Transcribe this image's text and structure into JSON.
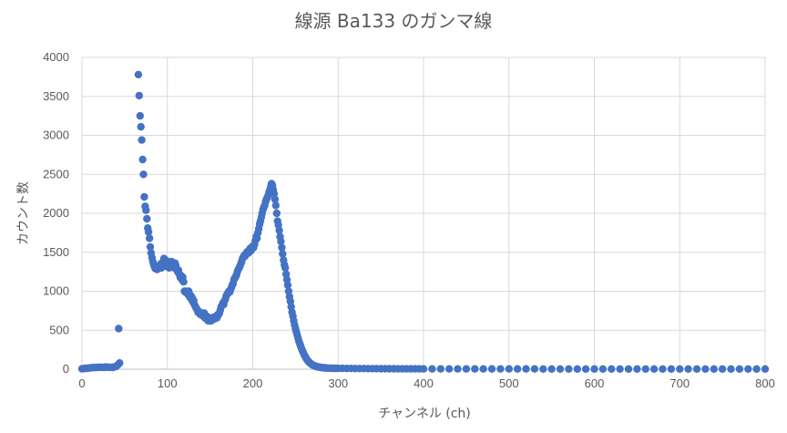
{
  "chart_data": {
    "type": "scatter",
    "title": "線源 Ba133 のガンマ線",
    "xlabel": "チャンネル (ch)",
    "ylabel": "カウント数",
    "xlim": [
      0,
      800
    ],
    "ylim": [
      0,
      4000
    ],
    "xticks": [
      "0",
      "100",
      "200",
      "300",
      "400",
      "500",
      "600",
      "700",
      "800"
    ],
    "yticks": [
      "0",
      "500",
      "1000",
      "1500",
      "2000",
      "2500",
      "3000",
      "3500",
      "4000"
    ],
    "grid": true,
    "legend": "none",
    "marker_color": "#4472C4",
    "series": [
      {
        "points": [
          [
            0,
            5
          ],
          [
            2,
            8
          ],
          [
            4,
            12
          ],
          [
            6,
            10
          ],
          [
            8,
            15
          ],
          [
            10,
            18
          ],
          [
            12,
            20
          ],
          [
            14,
            22
          ],
          [
            16,
            20
          ],
          [
            18,
            25
          ],
          [
            20,
            24
          ],
          [
            22,
            26
          ],
          [
            24,
            25
          ],
          [
            26,
            23
          ],
          [
            28,
            28
          ],
          [
            30,
            26
          ],
          [
            32,
            24
          ],
          [
            34,
            25
          ],
          [
            36,
            22
          ],
          [
            38,
            30
          ],
          [
            40,
            35
          ],
          [
            42,
            55
          ],
          [
            43,
            520
          ],
          [
            44,
            80
          ],
          [
            66,
            3780
          ],
          [
            67,
            3510
          ],
          [
            68,
            3250
          ],
          [
            69,
            3110
          ],
          [
            70,
            2940
          ],
          [
            71,
            2690
          ],
          [
            72,
            2500
          ],
          [
            73,
            2210
          ],
          [
            74,
            2090
          ],
          [
            75,
            2040
          ],
          [
            76,
            1930
          ],
          [
            77,
            1810
          ],
          [
            78,
            1760
          ],
          [
            79,
            1680
          ],
          [
            80,
            1570
          ],
          [
            81,
            1490
          ],
          [
            82,
            1430
          ],
          [
            83,
            1380
          ],
          [
            84,
            1340
          ],
          [
            85,
            1310
          ],
          [
            86,
            1290
          ],
          [
            87,
            1300
          ],
          [
            88,
            1280
          ],
          [
            89,
            1300
          ],
          [
            90,
            1310
          ],
          [
            91,
            1330
          ],
          [
            92,
            1350
          ],
          [
            93,
            1300
          ],
          [
            94,
            1330
          ],
          [
            95,
            1380
          ],
          [
            96,
            1420
          ],
          [
            97,
            1360
          ],
          [
            98,
            1400
          ],
          [
            99,
            1320
          ],
          [
            100,
            1380
          ],
          [
            101,
            1350
          ],
          [
            102,
            1300
          ],
          [
            103,
            1370
          ],
          [
            104,
            1340
          ],
          [
            105,
            1380
          ],
          [
            106,
            1320
          ],
          [
            107,
            1350
          ],
          [
            108,
            1300
          ],
          [
            109,
            1360
          ],
          [
            110,
            1330
          ],
          [
            111,
            1280
          ],
          [
            112,
            1250
          ],
          [
            113,
            1270
          ],
          [
            114,
            1220
          ],
          [
            115,
            1180
          ],
          [
            116,
            1200
          ],
          [
            117,
            1150
          ],
          [
            118,
            1180
          ],
          [
            119,
            1120
          ],
          [
            120,
            1000
          ],
          [
            121,
            990
          ],
          [
            122,
            1000
          ],
          [
            123,
            980
          ],
          [
            124,
            960
          ],
          [
            125,
            1000
          ],
          [
            126,
            930
          ],
          [
            127,
            950
          ],
          [
            128,
            900
          ],
          [
            129,
            920
          ],
          [
            130,
            860
          ],
          [
            131,
            880
          ],
          [
            132,
            820
          ],
          [
            133,
            800
          ],
          [
            134,
            780
          ],
          [
            135,
            760
          ],
          [
            136,
            730
          ],
          [
            137,
            740
          ],
          [
            138,
            710
          ],
          [
            139,
            700
          ],
          [
            140,
            720
          ],
          [
            141,
            690
          ],
          [
            142,
            680
          ],
          [
            143,
            720
          ],
          [
            144,
            660
          ],
          [
            145,
            650
          ],
          [
            146,
            680
          ],
          [
            147,
            630
          ],
          [
            148,
            620
          ],
          [
            149,
            660
          ],
          [
            150,
            640
          ],
          [
            151,
            620
          ],
          [
            152,
            630
          ],
          [
            153,
            660
          ],
          [
            154,
            640
          ],
          [
            155,
            670
          ],
          [
            156,
            650
          ],
          [
            157,
            680
          ],
          [
            158,
            660
          ],
          [
            159,
            700
          ],
          [
            160,
            700
          ],
          [
            161,
            720
          ],
          [
            162,
            760
          ],
          [
            163,
            800
          ],
          [
            164,
            820
          ],
          [
            165,
            850
          ],
          [
            166,
            830
          ],
          [
            167,
            880
          ],
          [
            168,
            900
          ],
          [
            169,
            940
          ],
          [
            170,
            960
          ],
          [
            171,
            980
          ],
          [
            172,
            1000
          ],
          [
            173,
            990
          ],
          [
            174,
            1020
          ],
          [
            175,
            1050
          ],
          [
            176,
            1080
          ],
          [
            177,
            1100
          ],
          [
            178,
            1150
          ],
          [
            179,
            1170
          ],
          [
            180,
            1190
          ],
          [
            181,
            1210
          ],
          [
            182,
            1250
          ],
          [
            183,
            1280
          ],
          [
            184,
            1300
          ],
          [
            185,
            1320
          ],
          [
            186,
            1350
          ],
          [
            187,
            1380
          ],
          [
            188,
            1420
          ],
          [
            189,
            1440
          ],
          [
            190,
            1460
          ],
          [
            191,
            1450
          ],
          [
            192,
            1480
          ],
          [
            193,
            1500
          ],
          [
            194,
            1510
          ],
          [
            195,
            1490
          ],
          [
            196,
            1530
          ],
          [
            197,
            1550
          ],
          [
            198,
            1520
          ],
          [
            199,
            1560
          ],
          [
            200,
            1580
          ],
          [
            201,
            1560
          ],
          [
            202,
            1600
          ],
          [
            203,
            1650
          ],
          [
            204,
            1700
          ],
          [
            205,
            1680
          ],
          [
            206,
            1750
          ],
          [
            207,
            1800
          ],
          [
            208,
            1860
          ],
          [
            209,
            1900
          ],
          [
            210,
            1950
          ],
          [
            211,
            2000
          ],
          [
            212,
            2050
          ],
          [
            213,
            2080
          ],
          [
            214,
            2100
          ],
          [
            215,
            2150
          ],
          [
            216,
            2180
          ],
          [
            217,
            2200
          ],
          [
            218,
            2230
          ],
          [
            219,
            2270
          ],
          [
            220,
            2300
          ],
          [
            221,
            2340
          ],
          [
            222,
            2380
          ],
          [
            223,
            2360
          ],
          [
            224,
            2300
          ],
          [
            225,
            2250
          ],
          [
            226,
            2180
          ],
          [
            227,
            2100
          ],
          [
            228,
            2000
          ],
          [
            229,
            1900
          ],
          [
            230,
            1850
          ],
          [
            231,
            1780
          ],
          [
            232,
            1700
          ],
          [
            233,
            1640
          ],
          [
            234,
            1560
          ],
          [
            235,
            1480
          ],
          [
            236,
            1400
          ],
          [
            237,
            1340
          ],
          [
            238,
            1300
          ],
          [
            239,
            1220
          ],
          [
            240,
            1150
          ],
          [
            241,
            1080
          ],
          [
            242,
            1000
          ],
          [
            243,
            930
          ],
          [
            244,
            870
          ],
          [
            245,
            800
          ],
          [
            246,
            730
          ],
          [
            247,
            680
          ],
          [
            248,
            620
          ],
          [
            249,
            570
          ],
          [
            250,
            520
          ],
          [
            251,
            480
          ],
          [
            252,
            440
          ],
          [
            253,
            400
          ],
          [
            254,
            360
          ],
          [
            255,
            330
          ],
          [
            256,
            300
          ],
          [
            257,
            270
          ],
          [
            258,
            240
          ],
          [
            259,
            215
          ],
          [
            260,
            190
          ],
          [
            261,
            170
          ],
          [
            262,
            150
          ],
          [
            263,
            130
          ],
          [
            264,
            115
          ],
          [
            265,
            100
          ],
          [
            266,
            90
          ],
          [
            267,
            80
          ],
          [
            268,
            70
          ],
          [
            269,
            62
          ],
          [
            270,
            55
          ],
          [
            271,
            50
          ],
          [
            272,
            45
          ],
          [
            273,
            40
          ],
          [
            274,
            36
          ],
          [
            275,
            32
          ],
          [
            276,
            30
          ],
          [
            277,
            28
          ],
          [
            278,
            26
          ],
          [
            279,
            24
          ],
          [
            280,
            22
          ],
          [
            281,
            20
          ],
          [
            282,
            19
          ],
          [
            283,
            18
          ],
          [
            284,
            17
          ],
          [
            285,
            16
          ],
          [
            286,
            15
          ],
          [
            288,
            14
          ],
          [
            290,
            13
          ],
          [
            292,
            12
          ],
          [
            294,
            12
          ],
          [
            296,
            11
          ],
          [
            298,
            11
          ],
          [
            300,
            10
          ],
          [
            305,
            10
          ],
          [
            310,
            9
          ],
          [
            315,
            9
          ],
          [
            320,
            8
          ],
          [
            325,
            8
          ],
          [
            330,
            8
          ],
          [
            335,
            7
          ],
          [
            340,
            7
          ],
          [
            345,
            7
          ],
          [
            350,
            6
          ],
          [
            355,
            6
          ],
          [
            360,
            6
          ],
          [
            365,
            6
          ],
          [
            370,
            5
          ],
          [
            375,
            5
          ],
          [
            380,
            5
          ],
          [
            385,
            5
          ],
          [
            390,
            5
          ],
          [
            395,
            5
          ],
          [
            400,
            4
          ],
          [
            410,
            4
          ],
          [
            420,
            4
          ],
          [
            430,
            4
          ],
          [
            440,
            4
          ],
          [
            450,
            3
          ],
          [
            460,
            3
          ],
          [
            470,
            3
          ],
          [
            480,
            3
          ],
          [
            490,
            3
          ],
          [
            500,
            3
          ],
          [
            510,
            3
          ],
          [
            520,
            3
          ],
          [
            530,
            3
          ],
          [
            540,
            2
          ],
          [
            550,
            2
          ],
          [
            560,
            2
          ],
          [
            570,
            2
          ],
          [
            580,
            2
          ],
          [
            590,
            2
          ],
          [
            600,
            2
          ],
          [
            610,
            2
          ],
          [
            620,
            2
          ],
          [
            630,
            2
          ],
          [
            640,
            2
          ],
          [
            650,
            2
          ],
          [
            660,
            2
          ],
          [
            670,
            2
          ],
          [
            680,
            2
          ],
          [
            690,
            2
          ],
          [
            700,
            2
          ],
          [
            710,
            2
          ],
          [
            720,
            2
          ],
          [
            730,
            2
          ],
          [
            740,
            2
          ],
          [
            750,
            2
          ],
          [
            760,
            2
          ],
          [
            770,
            2
          ],
          [
            780,
            2
          ],
          [
            790,
            2
          ],
          [
            800,
            2
          ]
        ]
      }
    ]
  }
}
